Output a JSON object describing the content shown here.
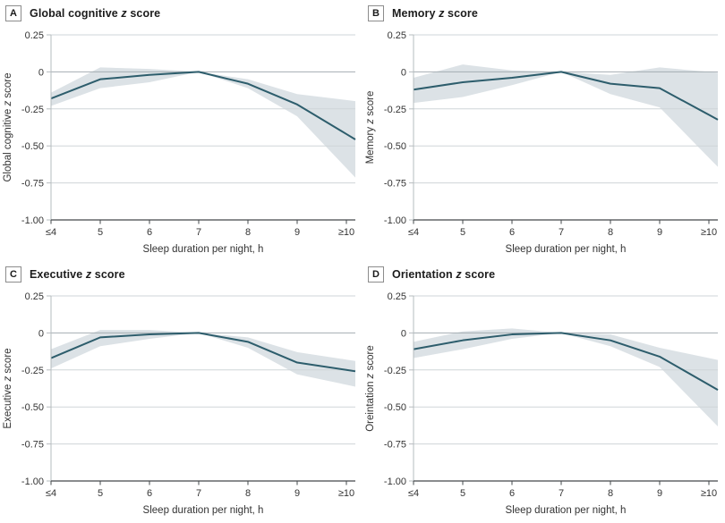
{
  "figure": {
    "x_axis_label": "Sleep duration per night, h",
    "x_categories": [
      "≤4",
      "5",
      "6",
      "7",
      "8",
      "9",
      "≥10"
    ],
    "y_ticks": [
      0.25,
      0,
      -0.25,
      -0.5,
      -0.75,
      -1.0
    ],
    "y_tick_labels": [
      "0.25",
      "0",
      "-0.25",
      "-0.50",
      "-0.75",
      "-1.00"
    ],
    "ylim": [
      -1.0,
      0.25
    ],
    "colors": {
      "line": "#2d5d6c",
      "band": "#dce2e6",
      "grid": "#cfd5d8",
      "zero_line": "#a4adb2",
      "y_axis": "#b6bcbf",
      "x_axis": "#43484b",
      "tick_text": "#333333",
      "title_text": "#1c1c1c"
    }
  },
  "chart_data": [
    {
      "type": "line",
      "panel_label": "A",
      "title": "Global cognitive z score",
      "ylabel": "Global cognitive z score",
      "xlabel": "Sleep duration per night, h",
      "x": [
        "≤4",
        "5",
        "6",
        "7",
        "8",
        "9",
        "≥10"
      ],
      "ylim": [
        -1.0,
        0.25
      ],
      "series": [
        {
          "name": "z score",
          "values": [
            -0.18,
            -0.05,
            -0.02,
            0,
            -0.08,
            -0.22,
            -0.42
          ]
        },
        {
          "name": "95% CI upper",
          "values": [
            -0.14,
            0.03,
            0.02,
            0,
            -0.05,
            -0.15,
            -0.19
          ]
        },
        {
          "name": "95% CI lower",
          "values": [
            -0.23,
            -0.11,
            -0.07,
            0,
            -0.11,
            -0.3,
            -0.65
          ]
        }
      ]
    },
    {
      "type": "line",
      "panel_label": "B",
      "title": "Memory z score",
      "ylabel": "Memory z score",
      "xlabel": "Sleep duration per night, h",
      "x": [
        "≤4",
        "5",
        "6",
        "7",
        "8",
        "9",
        "≥10"
      ],
      "ylim": [
        -1.0,
        0.25
      ],
      "series": [
        {
          "name": "z score",
          "values": [
            -0.12,
            -0.07,
            -0.04,
            0,
            -0.08,
            -0.11,
            -0.29
          ]
        },
        {
          "name": "95% CI upper",
          "values": [
            -0.04,
            0.05,
            0.01,
            0,
            -0.02,
            0.03,
            0
          ]
        },
        {
          "name": "95% CI lower",
          "values": [
            -0.21,
            -0.17,
            -0.09,
            0,
            -0.15,
            -0.24,
            -0.58
          ]
        }
      ]
    },
    {
      "type": "line",
      "panel_label": "C",
      "title": "Executive z score",
      "ylabel": "Executive z score",
      "xlabel": "Sleep duration per night, h",
      "x": [
        "≤4",
        "5",
        "6",
        "7",
        "8",
        "9",
        "≥10"
      ],
      "ylim": [
        -1.0,
        0.25
      ],
      "series": [
        {
          "name": "z score",
          "values": [
            -0.17,
            -0.03,
            -0.01,
            0,
            -0.06,
            -0.2,
            -0.25
          ]
        },
        {
          "name": "95% CI upper",
          "values": [
            -0.11,
            0.02,
            0.02,
            0,
            -0.03,
            -0.13,
            -0.18
          ]
        },
        {
          "name": "95% CI lower",
          "values": [
            -0.24,
            -0.09,
            -0.04,
            0,
            -0.1,
            -0.28,
            -0.35
          ]
        }
      ]
    },
    {
      "type": "line",
      "panel_label": "D",
      "title": "Orientation z score",
      "ylabel": "Oreintation z score",
      "xlabel": "Sleep duration per night, h",
      "x": [
        "≤4",
        "5",
        "6",
        "7",
        "8",
        "9",
        "≥10"
      ],
      "ylim": [
        -1.0,
        0.25
      ],
      "series": [
        {
          "name": "z score",
          "values": [
            -0.11,
            -0.05,
            -0.01,
            0,
            -0.05,
            -0.16,
            -0.35
          ]
        },
        {
          "name": "95% CI upper",
          "values": [
            -0.06,
            0.01,
            0.03,
            0,
            -0.01,
            -0.1,
            -0.17
          ]
        },
        {
          "name": "95% CI lower",
          "values": [
            -0.17,
            -0.11,
            -0.04,
            0,
            -0.09,
            -0.23,
            -0.57
          ]
        }
      ]
    }
  ]
}
